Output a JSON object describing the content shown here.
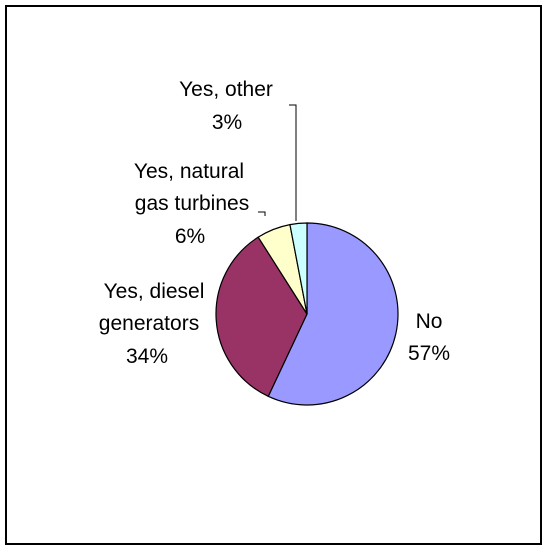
{
  "chart_data": {
    "type": "pie",
    "title": "",
    "start_angle_deg": 0,
    "direction": "clockwise",
    "slices": [
      {
        "label_lines": [
          "No"
        ],
        "percent_label": "57%",
        "value": 57,
        "color": "#9999ff"
      },
      {
        "label_lines": [
          "Yes, diesel",
          "generators"
        ],
        "percent_label": "34%",
        "value": 34,
        "color": "#993366"
      },
      {
        "label_lines": [
          "Yes, natural",
          "gas turbines"
        ],
        "percent_label": "6%",
        "value": 6,
        "color": "#ffffcc"
      },
      {
        "label_lines": [
          "Yes, other"
        ],
        "percent_label": "3%",
        "value": 3,
        "color": "#ccffff"
      }
    ],
    "legend": "none"
  }
}
